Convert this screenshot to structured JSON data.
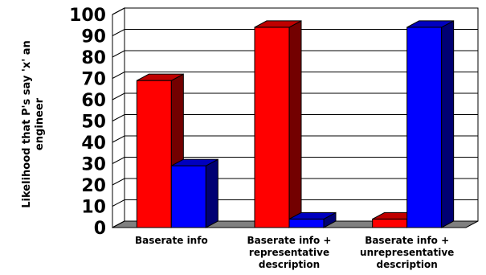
{
  "chart_data": {
    "type": "bar",
    "style": "3d-clustered",
    "categories": [
      [
        "Baserate info"
      ],
      [
        "Baserate info +",
        "representative",
        "description"
      ],
      [
        "Baserate info +",
        "unrepresentative",
        "description"
      ]
    ],
    "series": [
      {
        "values": [
          69,
          94,
          4
        ],
        "color": "#ff0000"
      },
      {
        "values": [
          29,
          4,
          94
        ],
        "color": "#0000ff"
      }
    ],
    "title": "",
    "xlabel": "",
    "ylabel": [
      "Likelihood that P's say 'x' an",
      "engineer"
    ],
    "ylim": [
      0,
      100
    ],
    "yticks": [
      0,
      10,
      20,
      30,
      40,
      50,
      60,
      70,
      80,
      90,
      100
    ],
    "grid": "horizontal",
    "legend": "none",
    "floor_color": "#808080"
  }
}
